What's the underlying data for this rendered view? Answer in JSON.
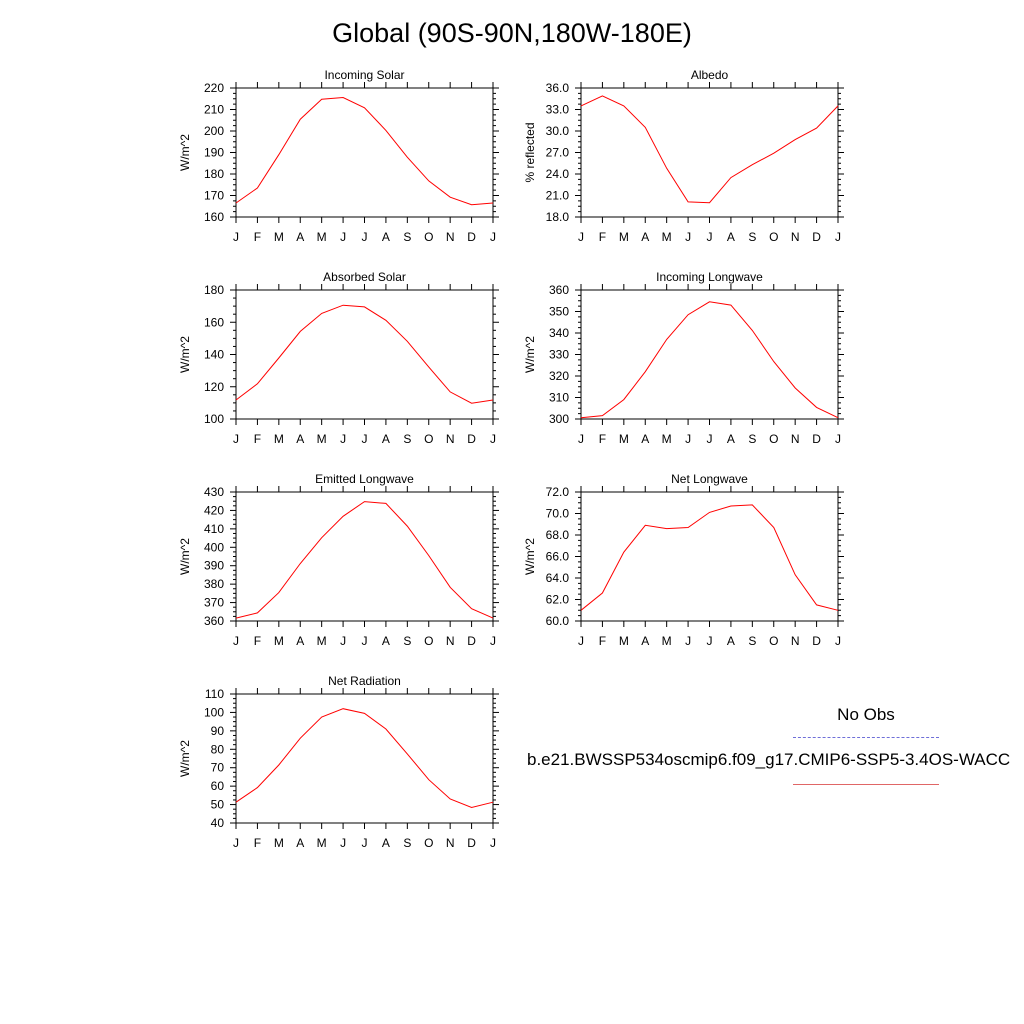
{
  "title": "Global (90S-90N,180W-180E)",
  "legend": {
    "obs_label": "No Obs",
    "case_label": "b.e21.BWSSP534oscmip6.f09_g17.CMIP6-SSP5-3.4OS-WACC",
    "obs_color": "#6f6fd8",
    "case_color": "#ff0000"
  },
  "chart_data": [
    {
      "type": "line",
      "title": "Incoming Solar",
      "ylabel": "W/m^2",
      "ylim": [
        160,
        220
      ],
      "yticks": [
        "160",
        "170",
        "180",
        "190",
        "200",
        "210",
        "220"
      ],
      "x": [
        "J",
        "F",
        "M",
        "A",
        "M",
        "J",
        "J",
        "A",
        "S",
        "O",
        "N",
        "D",
        "J"
      ],
      "series": [
        {
          "color": "#ff0000",
          "values": [
            166.5,
            173.5,
            189,
            205.5,
            214.8,
            215.6,
            210.8,
            200.3,
            187.8,
            176.8,
            169.2,
            165.7,
            166.5
          ]
        }
      ]
    },
    {
      "type": "line",
      "title": "Albedo",
      "ylabel": "% reflected",
      "ylim": [
        18,
        36
      ],
      "yticks": [
        "18.0",
        "21.0",
        "24.0",
        "27.0",
        "30.0",
        "33.0",
        "36.0"
      ],
      "x": [
        "J",
        "F",
        "M",
        "A",
        "M",
        "J",
        "J",
        "A",
        "S",
        "O",
        "N",
        "D",
        "J"
      ],
      "series": [
        {
          "color": "#ff0000",
          "values": [
            33.5,
            34.9,
            33.5,
            30.5,
            24.8,
            20.1,
            20.0,
            23.5,
            25.3,
            26.9,
            28.8,
            30.4,
            33.5
          ]
        }
      ]
    },
    {
      "type": "line",
      "title": "Absorbed Solar",
      "ylabel": "W/m^2",
      "ylim": [
        100,
        180
      ],
      "yticks": [
        "100",
        "120",
        "140",
        "160",
        "180"
      ],
      "x": [
        "J",
        "F",
        "M",
        "A",
        "M",
        "J",
        "J",
        "A",
        "S",
        "O",
        "N",
        "D",
        "J"
      ],
      "series": [
        {
          "color": "#ff0000",
          "values": [
            111.8,
            121.8,
            137.8,
            154.3,
            165.5,
            170.6,
            169.5,
            161.2,
            148.2,
            132.2,
            116.8,
            109.8,
            111.8
          ]
        }
      ]
    },
    {
      "type": "line",
      "title": "Incoming Longwave",
      "ylabel": "W/m^2",
      "ylim": [
        300,
        360
      ],
      "yticks": [
        "300",
        "310",
        "320",
        "330",
        "340",
        "350",
        "360"
      ],
      "x": [
        "J",
        "F",
        "M",
        "A",
        "M",
        "J",
        "J",
        "A",
        "S",
        "O",
        "N",
        "D",
        "J"
      ],
      "series": [
        {
          "color": "#ff0000",
          "values": [
            300.6,
            301.6,
            309.0,
            322.0,
            337.0,
            348.5,
            354.5,
            353.0,
            341.2,
            326.7,
            314.4,
            305.4,
            300.6
          ]
        }
      ]
    },
    {
      "type": "line",
      "title": "Emitted Longwave",
      "ylabel": "W/m^2",
      "ylim": [
        360,
        430
      ],
      "yticks": [
        "360",
        "370",
        "380",
        "390",
        "400",
        "410",
        "420",
        "430"
      ],
      "x": [
        "J",
        "F",
        "M",
        "A",
        "M",
        "J",
        "J",
        "A",
        "S",
        "O",
        "N",
        "D",
        "J"
      ],
      "series": [
        {
          "color": "#ff0000",
          "values": [
            361.6,
            364.4,
            375.4,
            391.2,
            405.2,
            416.8,
            424.8,
            423.8,
            411.5,
            395.5,
            378.3,
            366.7,
            361.6
          ]
        }
      ]
    },
    {
      "type": "line",
      "title": "Net Longwave",
      "ylabel": "W/m^2",
      "ylim": [
        60,
        72
      ],
      "yticks": [
        "60.0",
        "62.0",
        "64.0",
        "66.0",
        "68.0",
        "70.0",
        "72.0"
      ],
      "x": [
        "J",
        "F",
        "M",
        "A",
        "M",
        "J",
        "J",
        "A",
        "S",
        "O",
        "N",
        "D",
        "J"
      ],
      "series": [
        {
          "color": "#ff0000",
          "values": [
            61.0,
            62.6,
            66.4,
            68.9,
            68.6,
            68.7,
            70.1,
            70.7,
            70.8,
            68.7,
            64.3,
            61.5,
            61.0
          ]
        }
      ]
    },
    {
      "type": "line",
      "title": "Net Radiation",
      "ylabel": "W/m^2",
      "ylim": [
        40,
        110
      ],
      "yticks": [
        "40",
        "50",
        "60",
        "70",
        "80",
        "90",
        "100",
        "110"
      ],
      "x": [
        "J",
        "F",
        "M",
        "A",
        "M",
        "J",
        "J",
        "A",
        "S",
        "O",
        "N",
        "D",
        "J"
      ],
      "series": [
        {
          "color": "#ff0000",
          "values": [
            51.3,
            59.2,
            71.5,
            86.0,
            97.5,
            102.0,
            99.5,
            91.0,
            77.5,
            63.5,
            53.0,
            48.4,
            51.3
          ]
        }
      ]
    }
  ]
}
